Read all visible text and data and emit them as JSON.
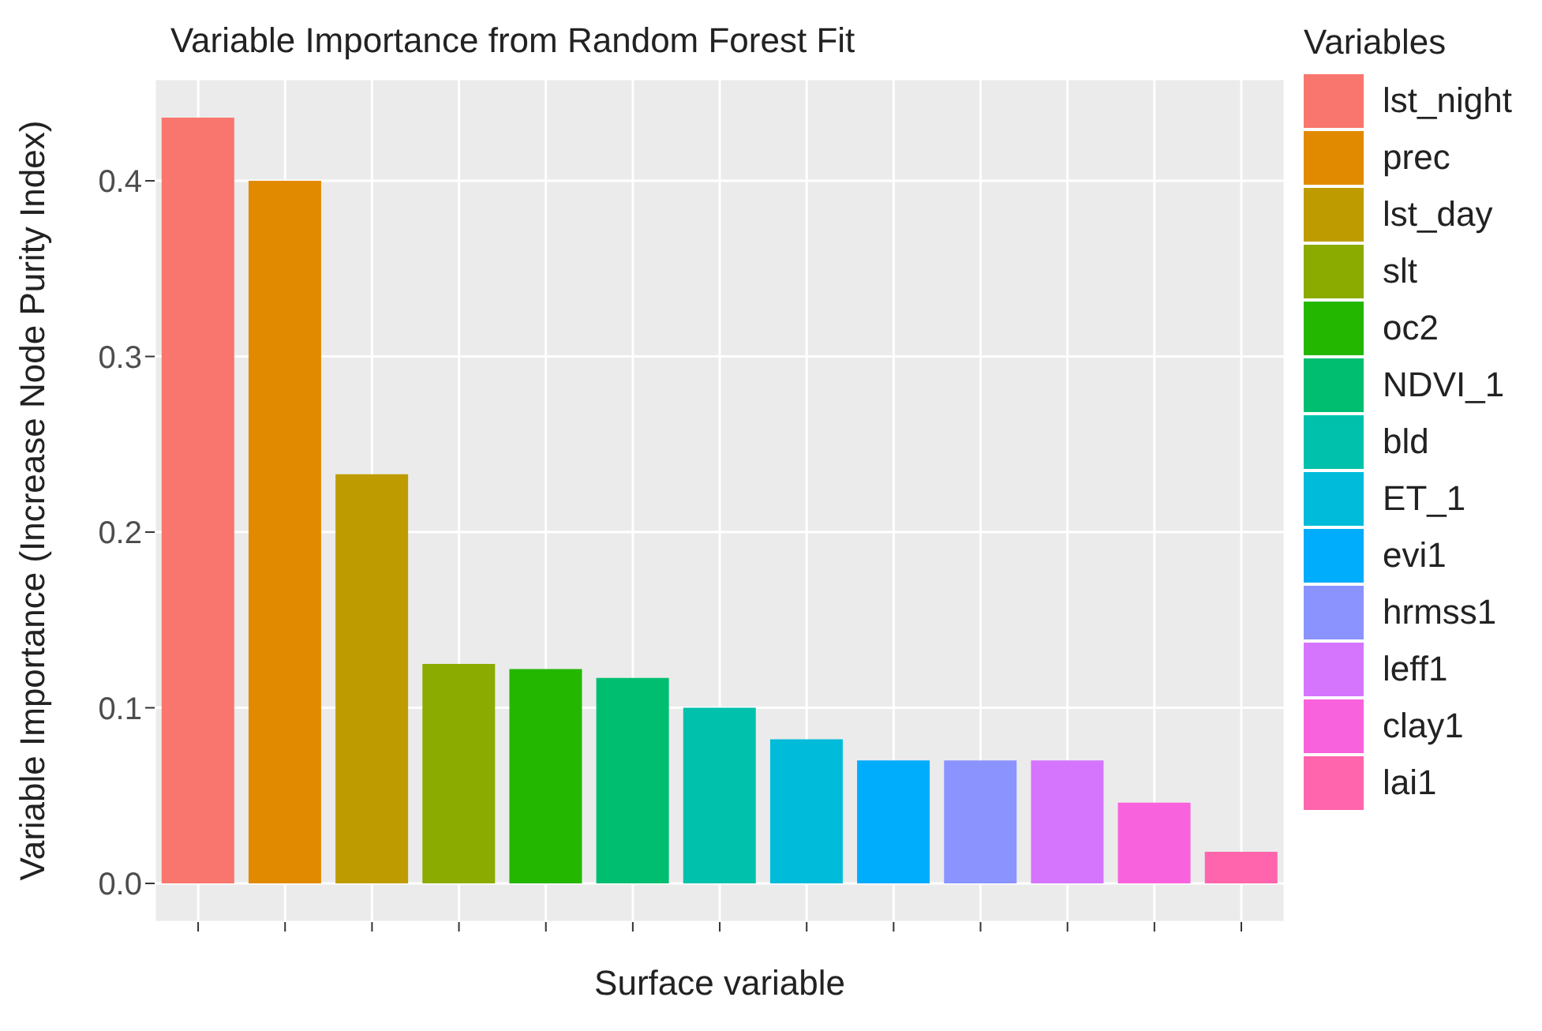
{
  "chart_data": {
    "type": "bar",
    "title": "Variable Importance from Random Forest Fit",
    "xlabel": "Surface variable",
    "ylabel": "Variable Importance (Increase Node Purity Index)",
    "legend_title": "Variables",
    "categories": [
      null,
      null,
      null,
      null,
      null,
      null,
      null,
      null,
      null,
      null,
      null,
      null,
      null
    ],
    "series": [
      {
        "name": "lst_night",
        "color": "#f8766d",
        "values": [
          0.436,
          null,
          null,
          null,
          null,
          null,
          null,
          null,
          null,
          null,
          null,
          null,
          null
        ]
      },
      {
        "name": "prec",
        "color": "#e18a00",
        "values": [
          null,
          0.4,
          null,
          null,
          null,
          null,
          null,
          null,
          null,
          null,
          null,
          null,
          null
        ]
      },
      {
        "name": "lst_day",
        "color": "#be9c00",
        "values": [
          null,
          null,
          0.233,
          null,
          null,
          null,
          null,
          null,
          null,
          null,
          null,
          null,
          null
        ]
      },
      {
        "name": "slt",
        "color": "#8cab00",
        "values": [
          null,
          null,
          null,
          0.125,
          null,
          null,
          null,
          null,
          null,
          null,
          null,
          null,
          null
        ]
      },
      {
        "name": "oc2",
        "color": "#24b700",
        "values": [
          null,
          null,
          null,
          null,
          0.122,
          null,
          null,
          null,
          null,
          null,
          null,
          null,
          null
        ]
      },
      {
        "name": "NDVI_1",
        "color": "#00be70",
        "values": [
          null,
          null,
          null,
          null,
          null,
          0.117,
          null,
          null,
          null,
          null,
          null,
          null,
          null
        ]
      },
      {
        "name": "bld",
        "color": "#00c1ab",
        "values": [
          null,
          null,
          null,
          null,
          null,
          null,
          0.1,
          null,
          null,
          null,
          null,
          null,
          null
        ]
      },
      {
        "name": "ET_1",
        "color": "#00bbda",
        "values": [
          null,
          null,
          null,
          null,
          null,
          null,
          null,
          0.082,
          null,
          null,
          null,
          null,
          null
        ]
      },
      {
        "name": "evi1",
        "color": "#00acfc",
        "values": [
          null,
          null,
          null,
          null,
          null,
          null,
          null,
          null,
          0.07,
          null,
          null,
          null,
          null
        ]
      },
      {
        "name": "hrmss1",
        "color": "#8b93ff",
        "values": [
          null,
          null,
          null,
          null,
          null,
          null,
          null,
          null,
          null,
          0.07,
          null,
          null,
          null
        ]
      },
      {
        "name": "leff1",
        "color": "#d575fe",
        "values": [
          null,
          null,
          null,
          null,
          null,
          null,
          null,
          null,
          null,
          null,
          0.07,
          null,
          null
        ]
      },
      {
        "name": "clay1",
        "color": "#f962dd",
        "values": [
          null,
          null,
          null,
          null,
          null,
          null,
          null,
          null,
          null,
          null,
          null,
          0.046,
          null
        ]
      },
      {
        "name": "lai1",
        "color": "#ff65ac",
        "values": [
          null,
          null,
          null,
          null,
          null,
          null,
          null,
          null,
          null,
          null,
          null,
          null,
          0.018
        ]
      }
    ],
    "ylim": [
      -0.022,
      0.458
    ],
    "yticks": [
      {
        "value": 0,
        "label": "0.0"
      },
      {
        "value": 0.1,
        "label": "0.1"
      },
      {
        "value": 0.2,
        "label": "0.2"
      },
      {
        "value": 0.3,
        "label": "0.3"
      },
      {
        "value": 0.4,
        "label": "0.4"
      }
    ],
    "grid": true,
    "legend": "right"
  }
}
